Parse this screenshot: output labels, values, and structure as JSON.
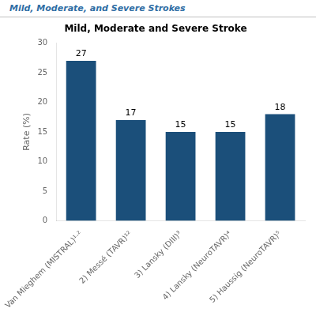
{
  "chart_data": {
    "type": "bar",
    "subtitle": "Mild, Moderate, and Severe Strokes",
    "title": "Mild, Moderate and Severe Stroke",
    "categories": [
      "Van Mieghem (MISTRAL)¹·²",
      "2) Messé (TAVR)¹²",
      "3) Lansky (DIII)³",
      "4) Lansky (NeuroTAVR)⁴",
      "5) Haussig (NeuroTAVR)⁵"
    ],
    "values": [
      27,
      17,
      15,
      15,
      18
    ],
    "color": "#1B4F7A",
    "ylabel": "Rate (%)",
    "ylim": [
      0,
      30
    ],
    "yticks": [
      0,
      5,
      10,
      15,
      20,
      25,
      30
    ],
    "grid": false,
    "data_labels": true
  }
}
